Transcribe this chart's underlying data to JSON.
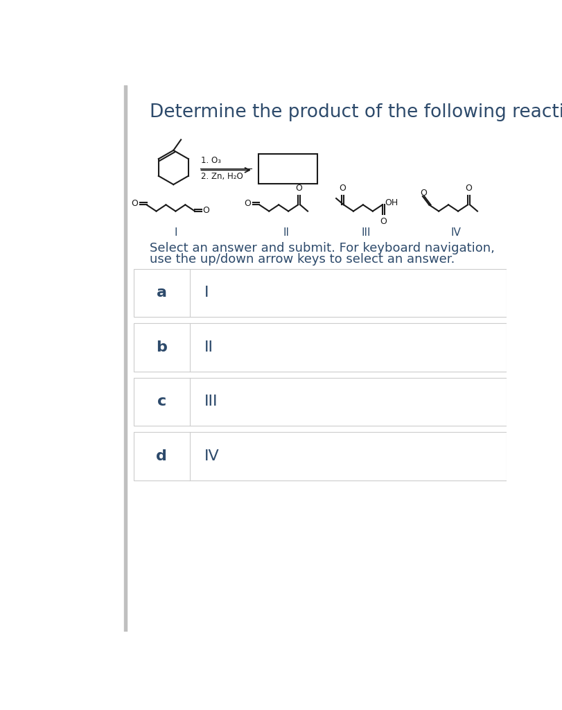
{
  "title": "Determine the product of the following reaction",
  "title_color": "#2d4a6b",
  "title_fontsize": 19,
  "bg_color": "#ffffff",
  "reaction_conditions_1": "1. O₃",
  "reaction_conditions_2": "2. Zn, H₂O",
  "answer_options": [
    {
      "label": "a",
      "value": "I"
    },
    {
      "label": "b",
      "value": "II"
    },
    {
      "label": "c",
      "value": "III"
    },
    {
      "label": "d",
      "value": "IV"
    }
  ],
  "select_text_1": "Select an answer and submit. For keyboard navigation,",
  "select_text_2": "use the up/down arrow keys to select an answer.",
  "text_color": "#2d4a6b",
  "border_color": "#cccccc",
  "line_color": "#1a1a1a",
  "left_bar_color": "#c0c0c0",
  "roman_labels": [
    "I",
    "II",
    "III",
    "IV"
  ],
  "select_fontsize": 13,
  "option_label_fontsize": 16,
  "option_value_fontsize": 16
}
